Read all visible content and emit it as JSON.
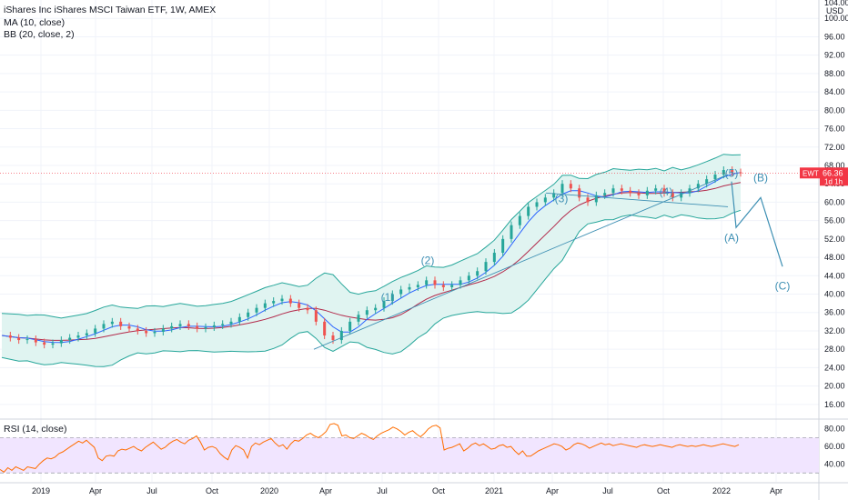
{
  "header": {
    "title": "iShares Inc iShares MSCI Taiwan ETF, 1W, AMEX",
    "ma_label": "MA (10, close)",
    "bb_label": "BB (20, close, 2)",
    "rsi_label": "RSI (14, close)"
  },
  "price_scale": {
    "currency": "USD",
    "ticks": [
      "100.00",
      "96.00",
      "92.00",
      "88.00",
      "84.00",
      "80.00",
      "76.00",
      "72.00",
      "68.00",
      "64.00",
      "60.00",
      "56.00",
      "52.00",
      "48.00",
      "44.00",
      "40.00",
      "36.00",
      "32.00",
      "28.00",
      "24.00",
      "20.00",
      "16.00"
    ],
    "top_tick": "104.00",
    "badge": {
      "symbol": "EWT",
      "price": "66.36",
      "interval": "1d 1h",
      "color": "#f23645"
    }
  },
  "rsi_scale": {
    "ticks": [
      "80.00",
      "60.00",
      "40.00"
    ]
  },
  "time_axis": {
    "labels": [
      "2019",
      "Apr",
      "Jul",
      "Oct",
      "2020",
      "Apr",
      "Jul",
      "Oct",
      "2021",
      "Apr",
      "Jul",
      "Oct",
      "2022",
      "Apr"
    ]
  },
  "colors": {
    "bb_band": "#26a69a",
    "bb_fill": "#e0f4f1",
    "ma_line": "#2962ff",
    "basis_line": "#b2294a",
    "bull_candle": "#26a69a",
    "bear_candle": "#ef5350",
    "rsi_line": "#ff6d00",
    "rsi_bg": "#f1e5ff",
    "wave": "#3d8fb3",
    "price_line": "#f23645"
  },
  "chart_data": {
    "type": "candlestick",
    "x_start": "2018-10",
    "x_end": "2022-06",
    "price_range": [
      13,
      104
    ],
    "last_price": 66.36,
    "close_series": [
      31,
      30.5,
      30,
      30.2,
      29.5,
      29,
      29.3,
      30,
      30.5,
      31,
      31.5,
      32.5,
      33.5,
      34,
      33,
      32.5,
      32,
      31.5,
      31.8,
      32.5,
      33,
      33.5,
      33,
      32.5,
      32.8,
      33.2,
      33.5,
      34,
      35,
      36,
      37,
      38,
      38.5,
      39,
      38,
      37,
      36.5,
      34,
      31,
      30,
      32,
      34,
      35.5,
      36.5,
      37,
      38.5,
      40,
      41,
      41.5,
      42,
      43,
      42,
      41.5,
      42,
      43,
      44,
      45,
      47,
      49,
      52,
      55,
      57,
      59,
      60,
      61,
      62,
      64,
      63,
      61,
      60,
      61.5,
      62,
      63,
      62.5,
      62,
      61.5,
      62.5,
      63,
      62,
      61,
      62,
      63,
      64,
      65,
      66,
      67,
      66.5,
      66.36
    ],
    "waves": [
      {
        "label": "(1)",
        "date": "2020-08",
        "price": 38.5
      },
      {
        "label": "(2)",
        "date": "2020-10",
        "price": 46.5
      },
      {
        "label": "(3)",
        "date": "2021-05",
        "price": 60
      },
      {
        "label": "(4)",
        "date": "2021-10",
        "price": 61.5
      },
      {
        "label": "(5)",
        "date": "2022-01",
        "price": 65.5
      },
      {
        "label": "(A)",
        "date": "2022-01",
        "price": 51.5
      },
      {
        "label": "(B)",
        "date": "2022-02",
        "price": 64.5
      },
      {
        "label": "(C)",
        "date": "2022-03",
        "price": 41
      }
    ],
    "projection": [
      [
        64.5,
        65.3
      ],
      [
        54.5,
        53.5
      ],
      [
        61,
        62
      ],
      [
        46,
        45
      ]
    ],
    "rsi": {
      "range": [
        20,
        90
      ],
      "overbought": 70,
      "oversold": 30,
      "values": [
        34,
        31,
        36,
        33,
        37,
        35,
        33,
        37,
        36,
        35,
        40,
        44,
        47,
        46,
        48,
        52,
        54,
        57,
        60,
        63,
        66,
        64,
        67,
        63,
        59,
        47,
        44,
        49,
        50,
        49,
        55,
        57,
        56,
        58,
        60,
        57,
        55,
        59,
        62,
        65,
        61,
        57,
        59,
        63,
        66,
        68,
        65,
        63,
        67,
        69,
        72,
        65,
        56,
        59,
        60,
        58,
        52,
        48,
        45,
        56,
        61,
        59,
        56,
        47,
        60,
        64,
        62,
        65,
        67,
        69,
        64,
        60,
        62,
        57,
        63,
        67,
        66,
        69,
        73,
        75,
        72,
        70,
        73,
        77,
        85,
        86,
        84,
        72,
        73,
        70,
        69,
        72,
        75,
        73,
        70,
        68,
        72,
        75,
        77,
        79,
        82,
        80,
        77,
        73,
        76,
        78,
        74,
        71,
        75,
        80,
        83,
        84,
        81,
        56,
        58,
        59,
        61,
        63,
        55,
        58,
        62,
        64,
        61,
        63,
        60,
        57,
        58,
        61,
        62,
        59,
        60,
        55,
        51,
        55,
        49,
        49,
        52,
        55,
        57,
        59,
        61,
        63,
        62,
        60,
        56,
        58,
        62,
        64,
        63,
        61,
        58,
        60,
        62,
        64,
        62,
        63,
        61,
        62,
        63,
        62,
        61,
        60,
        59,
        61,
        62,
        61,
        60,
        61,
        62,
        61,
        60,
        59,
        61,
        62,
        61,
        60,
        61,
        60,
        61,
        62,
        61,
        60,
        61,
        62,
        63,
        62,
        61,
        60,
        62
      ]
    }
  }
}
